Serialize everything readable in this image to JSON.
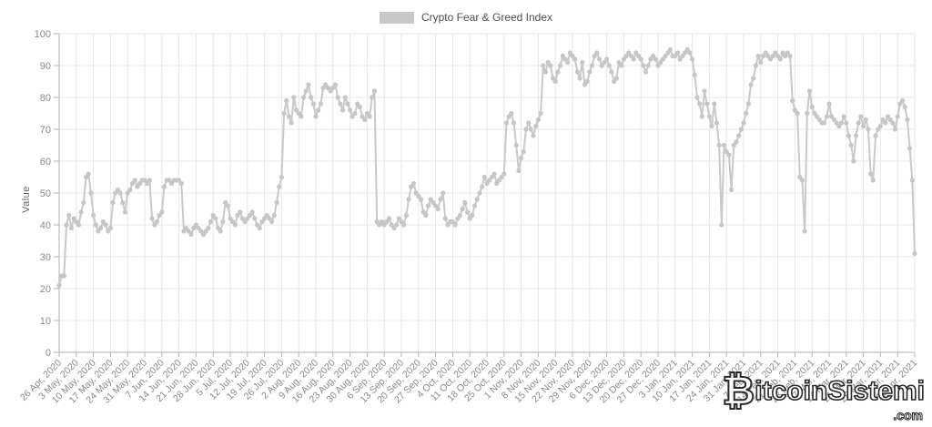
{
  "legend": {
    "label": "Crypto Fear & Greed Index"
  },
  "y_axis": {
    "title": "Value"
  },
  "watermark": {
    "symbol": "₿",
    "name": "itcoinSistemi",
    "tld": ".com"
  },
  "colors": {
    "line": "#c9c9c9",
    "marker": "#c6c6c6",
    "grid": "#e8e8e8",
    "axis": "#b3b3b3",
    "tick_label": "#8a8a8a",
    "legend_swatch": "#c8c8c8"
  },
  "chart_data": {
    "type": "line",
    "title": "Crypto Fear & Greed Index",
    "series_name": "Crypto Fear & Greed Index",
    "ylabel": "Value",
    "ylim": [
      0,
      100
    ],
    "y_ticks": [
      0,
      10,
      20,
      30,
      40,
      50,
      60,
      70,
      80,
      90,
      100
    ],
    "grid": true,
    "legend_position": "top-center",
    "x_interval": "daily (weekly tick labels)",
    "x_labels": [
      "26 Apr, 2020",
      "3 May, 2020",
      "10 May, 2020",
      "17 May, 2020",
      "24 May, 2020",
      "31 May, 2020",
      "7 Jun, 2020",
      "14 Jun, 2020",
      "21 Jun, 2020",
      "28 Jun, 2020",
      "5 Jul, 2020",
      "12 Jul, 2020",
      "19 Jul, 2020",
      "26 Jul, 2020",
      "2 Aug, 2020",
      "9 Aug, 2020",
      "16 Aug, 2020",
      "23 Aug, 2020",
      "30 Aug, 2020",
      "6 Sep, 2020",
      "13 Sep, 2020",
      "20 Sep, 2020",
      "27 Sep, 2020",
      "4 Oct, 2020",
      "11 Oct, 2020",
      "18 Oct, 2020",
      "25 Oct, 2020",
      "1 Nov, 2020",
      "8 Nov, 2020",
      "15 Nov, 2020",
      "22 Nov, 2020",
      "29 Nov, 2020",
      "6 Dec, 2020",
      "13 Dec, 2020",
      "20 Dec, 2020",
      "27 Dec, 2020",
      "3 Jan, 2021",
      "10 Jan, 2021",
      "17 Jan, 2021",
      "24 Jan, 2021",
      "31 Jan, 2021",
      "7 Feb, 2021",
      "14 Feb, 2021",
      "21 Feb, 2021",
      "28 Feb, 2021",
      "7 Mar, 2021",
      "14 Mar, 2021",
      "21 Mar, 2021",
      "28 Mar, 2021",
      "4 Apr, 2021",
      "11 Apr, 2021"
    ],
    "values": [
      21,
      24,
      24,
      40,
      43,
      39,
      42,
      41,
      40,
      44,
      47,
      55,
      56,
      50,
      43,
      40,
      38,
      39,
      41,
      40,
      38,
      39,
      47,
      50,
      51,
      50,
      47,
      44,
      50,
      51,
      53,
      54,
      52,
      53,
      54,
      54,
      53,
      54,
      42,
      40,
      41,
      43,
      44,
      52,
      54,
      54,
      53,
      54,
      54,
      54,
      53,
      38,
      39,
      38,
      37,
      39,
      40,
      39,
      38,
      37,
      38,
      39,
      41,
      43,
      42,
      39,
      38,
      41,
      47,
      46,
      42,
      41,
      40,
      43,
      44,
      42,
      41,
      42,
      43,
      44,
      42,
      40,
      39,
      41,
      42,
      43,
      42,
      41,
      43,
      47,
      52,
      55,
      75,
      79,
      74,
      72,
      80,
      76,
      75,
      74,
      80,
      82,
      84,
      80,
      78,
      74,
      76,
      78,
      83,
      84,
      83,
      82,
      83,
      84,
      80,
      78,
      76,
      80,
      78,
      76,
      74,
      75,
      78,
      77,
      74,
      73,
      75,
      74,
      80,
      82,
      41,
      40,
      41,
      40,
      41,
      42,
      40,
      39,
      40,
      42,
      41,
      40,
      43,
      48,
      52,
      53,
      50,
      49,
      48,
      44,
      43,
      46,
      48,
      47,
      46,
      45,
      48,
      50,
      42,
      40,
      41,
      41,
      40,
      42,
      43,
      45,
      47,
      44,
      42,
      43,
      46,
      48,
      50,
      52,
      55,
      53,
      54,
      55,
      56,
      53,
      54,
      55,
      56,
      72,
      74,
      75,
      72,
      65,
      57,
      61,
      63,
      70,
      72,
      70,
      68,
      71,
      73,
      75,
      90,
      88,
      91,
      90,
      86,
      85,
      88,
      90,
      93,
      92,
      91,
      94,
      93,
      92,
      88,
      86,
      91,
      84,
      85,
      88,
      90,
      93,
      94,
      92,
      90,
      91,
      92,
      90,
      88,
      85,
      86,
      91,
      90,
      92,
      93,
      94,
      93,
      92,
      94,
      93,
      92,
      90,
      88,
      90,
      92,
      93,
      92,
      90,
      91,
      92,
      93,
      94,
      95,
      93,
      93,
      94,
      92,
      93,
      94,
      95,
      94,
      92,
      87,
      80,
      78,
      74,
      82,
      78,
      74,
      71,
      78,
      72,
      65,
      40,
      65,
      63,
      62,
      51,
      65,
      66,
      68,
      70,
      72,
      75,
      78,
      84,
      86,
      90,
      93,
      91,
      93,
      94,
      93,
      92,
      93,
      94,
      93,
      92,
      94,
      93,
      94,
      93,
      79,
      76,
      75,
      55,
      54,
      38,
      75,
      82,
      77,
      75,
      74,
      73,
      72,
      72,
      74,
      78,
      74,
      73,
      72,
      71,
      72,
      74,
      72,
      68,
      65,
      60,
      68,
      72,
      74,
      71,
      73,
      70,
      56,
      54,
      68,
      70,
      71,
      73,
      72,
      74,
      73,
      72,
      70,
      74,
      78,
      79,
      77,
      73,
      64,
      54,
      31
    ]
  }
}
